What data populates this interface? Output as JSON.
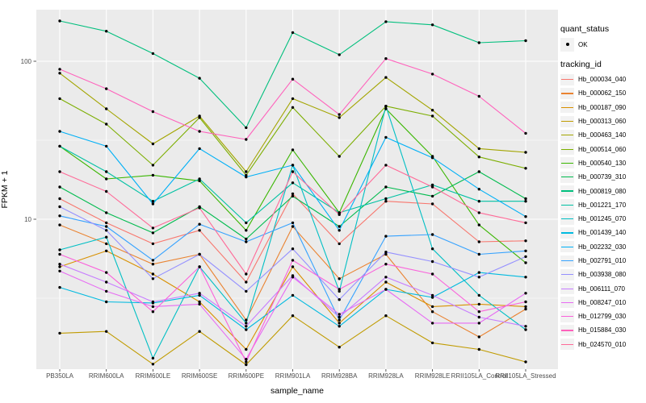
{
  "figure": {
    "x_axis_title": "sample_name",
    "y_axis_title": "FPKM + 1"
  },
  "axis": {
    "y_ticks": [
      {
        "label": "100",
        "value": 100
      },
      {
        "label": "10",
        "value": 10
      }
    ]
  },
  "legend": {
    "quant_status_title": "quant_status",
    "quant_status_ok": "OK",
    "tracking_title": "tracking_id"
  },
  "style": {
    "panel_bg": "#EBEBEB",
    "grid_color": "#FFFFFF",
    "tick_color": "#333333",
    "tick_label_color": "#4D4D4D",
    "point_color": "#000000"
  },
  "chart_data": {
    "type": "line",
    "title": "",
    "xlabel": "sample_name",
    "ylabel": "FPKM + 1",
    "y_scale": "log10",
    "ylim": [
      1.12,
      212
    ],
    "legend_position": "right",
    "grid": true,
    "points_status": "OK",
    "layout": {
      "y_major": [
        10,
        100
      ],
      "y_minor": [
        3.162,
        31.62
      ]
    },
    "categories": [
      "PB350LA",
      "RRIM600LA",
      "RRIM600LE",
      "RRIM600SE",
      "RRIM600PE",
      "RRIM901LA",
      "RRIM928BA",
      "RRIM928LA",
      "RRIM928LE",
      "RRII105LA_Control",
      "RRII105LA_Stressed"
    ],
    "series": [
      {
        "name": "Hb_000034_040",
        "color": "#F8766D",
        "values": [
          13.5,
          9.5,
          7.0,
          8.5,
          4.0,
          14.5,
          7.0,
          13.0,
          12.5,
          7.2,
          7.3
        ]
      },
      {
        "name": "Hb_000062_150",
        "color": "#EA8331",
        "values": [
          9.2,
          7.0,
          5.2,
          6.0,
          2.3,
          9.0,
          4.2,
          6.0,
          2.6,
          1.8,
          2.7
        ]
      },
      {
        "name": "Hb_000187_090",
        "color": "#D89000",
        "values": [
          5.0,
          6.3,
          4.5,
          3.0,
          1.5,
          5.0,
          2.2,
          4.0,
          2.8,
          2.9,
          2.8
        ]
      },
      {
        "name": "Hb_000313_060",
        "color": "#C09B00",
        "values": [
          1.9,
          1.95,
          1.21,
          1.95,
          1.2,
          2.45,
          1.55,
          2.45,
          1.65,
          1.5,
          1.25
        ]
      },
      {
        "name": "Hb_000463_140",
        "color": "#A3A500",
        "values": [
          84,
          50,
          30,
          45,
          20,
          58,
          44,
          79,
          49,
          28,
          26.5
        ]
      },
      {
        "name": "Hb_000514_060",
        "color": "#7CAE00",
        "values": [
          58,
          40,
          22,
          44,
          19,
          51,
          25,
          52,
          45,
          24.8,
          21
        ]
      },
      {
        "name": "Hb_000540_130",
        "color": "#39B600",
        "values": [
          29,
          18,
          19,
          17.5,
          8.5,
          27.5,
          11,
          50,
          25,
          9.2,
          5.3
        ]
      },
      {
        "name": "Hb_000739_310",
        "color": "#00BB4E",
        "values": [
          16,
          11,
          8.2,
          12,
          7.5,
          14,
          9,
          16,
          14,
          20,
          13.5
        ]
      },
      {
        "name": "Hb_000819_080",
        "color": "#00BF7D",
        "values": [
          180,
          155,
          112,
          78,
          38,
          152,
          110,
          178,
          170,
          131,
          135
        ]
      },
      {
        "name": "Hb_001221_170",
        "color": "#00C1A3",
        "values": [
          29,
          20,
          13,
          18,
          9.5,
          17,
          11,
          13.5,
          16.5,
          13,
          13
        ]
      },
      {
        "name": "Hb_001245_070",
        "color": "#00BFC4",
        "values": [
          6.4,
          7.7,
          1.32,
          5.0,
          2.2,
          22,
          3.5,
          52,
          6.5,
          3.3,
          2.0
        ]
      },
      {
        "name": "Hb_001439_140",
        "color": "#00BAE0",
        "values": [
          3.7,
          3.0,
          2.95,
          3.3,
          2.0,
          3.3,
          2.1,
          3.6,
          3.2,
          4.6,
          4.3
        ]
      },
      {
        "name": "Hb_002232_030",
        "color": "#00B0F6",
        "values": [
          36,
          29,
          12.5,
          28,
          18.5,
          22,
          8.5,
          33,
          24.5,
          15.5,
          10.4
        ]
      },
      {
        "name": "Hb_002791_010",
        "color": "#35A2FF",
        "values": [
          10.5,
          9.0,
          5.5,
          9.3,
          7.2,
          9.5,
          2.3,
          7.8,
          8.0,
          6.0,
          6.3
        ]
      },
      {
        "name": "Hb_003938_080",
        "color": "#9590FF",
        "values": [
          12,
          8.5,
          4.2,
          6.0,
          3.5,
          6.5,
          3.1,
          6.2,
          5.4,
          4.3,
          5.8
        ]
      },
      {
        "name": "Hb_006111_070",
        "color": "#C77CFF",
        "values": [
          5.2,
          4.0,
          3.0,
          3.4,
          2.1,
          4.4,
          2.4,
          4.3,
          3.3,
          2.4,
          2.1
        ]
      },
      {
        "name": "Hb_008247_010",
        "color": "#E76BF3",
        "values": [
          4.7,
          3.5,
          2.8,
          2.9,
          1.3,
          4.3,
          2.5,
          3.6,
          2.2,
          2.2,
          3.4
        ]
      },
      {
        "name": "Hb_012799_030",
        "color": "#FA62DB",
        "values": [
          6.0,
          4.6,
          2.6,
          5.0,
          1.25,
          5.5,
          3.6,
          5.2,
          4.5,
          2.6,
          3.0
        ]
      },
      {
        "name": "Hb_015884_030",
        "color": "#FF62BC",
        "values": [
          89,
          67,
          48,
          36,
          32,
          77,
          46,
          104,
          83,
          60,
          35
        ]
      },
      {
        "name": "Hb_024570_010",
        "color": "#FF6A98",
        "values": [
          20,
          15,
          8.8,
          11.8,
          4.5,
          20,
          10.7,
          22,
          16,
          11,
          9.5
        ]
      }
    ]
  }
}
